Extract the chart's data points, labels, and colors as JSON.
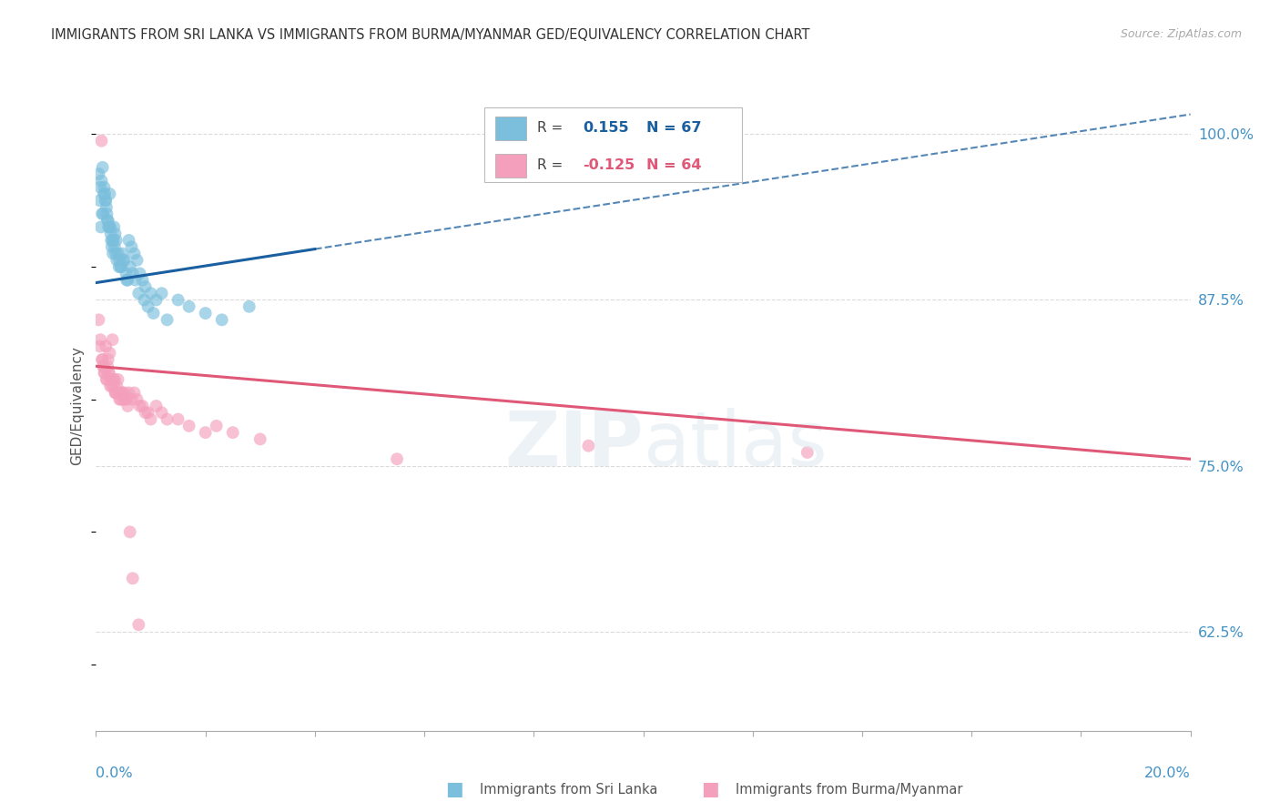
{
  "title": "IMMIGRANTS FROM SRI LANKA VS IMMIGRANTS FROM BURMA/MYANMAR GED/EQUIVALENCY CORRELATION CHART",
  "source": "Source: ZipAtlas.com",
  "ylabel": "GED/Equivalency",
  "xlim": [
    0.0,
    20.0
  ],
  "ylim": [
    55.0,
    104.0
  ],
  "yticks": [
    62.5,
    75.0,
    87.5,
    100.0
  ],
  "ytick_labels": [
    "62.5%",
    "75.0%",
    "87.5%",
    "100.0%"
  ],
  "color_srilanka": "#7bbfdd",
  "color_burma": "#f4a0bc",
  "color_blue_line": "#1a5fa0",
  "color_pink_line": "#e05878",
  "color_grid": "#cccccc",
  "color_axis_blue": "#4292c6",
  "legend_v1": "0.155",
  "legend_n1": "N = 67",
  "legend_v2": "-0.125",
  "legend_n2": "N = 64",
  "sl_line_x0": 0.0,
  "sl_line_y0": 88.8,
  "sl_line_x1": 20.0,
  "sl_line_y1": 101.5,
  "sl_solid_end": 4.0,
  "bu_line_x0": 0.0,
  "bu_line_y0": 82.5,
  "bu_line_x1": 20.0,
  "bu_line_y1": 75.5,
  "srilanka_x": [
    0.05,
    0.07,
    0.09,
    0.1,
    0.12,
    0.13,
    0.15,
    0.16,
    0.17,
    0.18,
    0.19,
    0.2,
    0.21,
    0.22,
    0.23,
    0.24,
    0.25,
    0.26,
    0.27,
    0.28,
    0.29,
    0.3,
    0.31,
    0.33,
    0.35,
    0.37,
    0.4,
    0.43,
    0.45,
    0.48,
    0.5,
    0.55,
    0.58,
    0.6,
    0.65,
    0.7,
    0.75,
    0.8,
    0.85,
    0.9,
    1.0,
    1.1,
    1.2,
    1.5,
    1.7,
    2.0,
    2.8,
    0.08,
    0.11,
    0.14,
    0.32,
    0.34,
    0.36,
    0.38,
    0.42,
    0.46,
    0.52,
    0.56,
    0.62,
    0.67,
    0.72,
    0.78,
    0.88,
    0.95,
    1.05,
    1.3,
    2.3
  ],
  "srilanka_y": [
    97.0,
    95.0,
    93.0,
    96.5,
    97.5,
    94.0,
    96.0,
    95.5,
    95.0,
    95.0,
    94.5,
    94.0,
    93.5,
    93.5,
    93.0,
    93.0,
    95.5,
    93.0,
    92.5,
    92.0,
    91.5,
    92.0,
    91.0,
    93.0,
    92.5,
    92.0,
    91.0,
    90.5,
    90.0,
    91.0,
    90.5,
    89.5,
    89.0,
    92.0,
    91.5,
    91.0,
    90.5,
    89.5,
    89.0,
    88.5,
    88.0,
    87.5,
    88.0,
    87.5,
    87.0,
    86.5,
    87.0,
    96.0,
    94.0,
    95.5,
    92.0,
    91.5,
    91.0,
    90.5,
    90.0,
    90.0,
    90.5,
    89.0,
    90.0,
    89.5,
    89.0,
    88.0,
    87.5,
    87.0,
    86.5,
    86.0,
    86.0
  ],
  "burma_x": [
    0.05,
    0.08,
    0.1,
    0.12,
    0.14,
    0.16,
    0.18,
    0.2,
    0.22,
    0.24,
    0.25,
    0.27,
    0.29,
    0.3,
    0.32,
    0.34,
    0.36,
    0.38,
    0.4,
    0.42,
    0.45,
    0.48,
    0.5,
    0.52,
    0.55,
    0.58,
    0.6,
    0.65,
    0.7,
    0.75,
    0.8,
    0.85,
    0.9,
    0.95,
    1.0,
    1.1,
    1.2,
    1.3,
    1.5,
    1.7,
    2.0,
    2.2,
    2.5,
    3.0,
    5.5,
    9.0,
    13.0,
    0.07,
    0.11,
    0.13,
    0.15,
    0.19,
    0.21,
    0.23,
    0.26,
    0.31,
    0.35,
    0.37,
    0.43,
    0.47,
    0.53,
    0.62,
    0.67,
    0.78
  ],
  "burma_y": [
    86.0,
    84.5,
    99.5,
    83.0,
    82.5,
    82.0,
    84.0,
    81.5,
    83.0,
    82.0,
    83.5,
    81.5,
    81.0,
    84.5,
    81.0,
    81.5,
    80.5,
    81.0,
    81.5,
    80.5,
    80.0,
    80.5,
    80.0,
    80.5,
    80.0,
    79.5,
    80.5,
    80.0,
    80.5,
    80.0,
    79.5,
    79.5,
    79.0,
    79.0,
    78.5,
    79.5,
    79.0,
    78.5,
    78.5,
    78.0,
    77.5,
    78.0,
    77.5,
    77.0,
    75.5,
    76.5,
    76.0,
    84.0,
    83.0,
    82.5,
    82.0,
    81.5,
    82.5,
    82.0,
    81.0,
    81.5,
    80.5,
    80.5,
    80.0,
    80.5,
    80.0,
    70.0,
    66.5,
    63.0
  ]
}
